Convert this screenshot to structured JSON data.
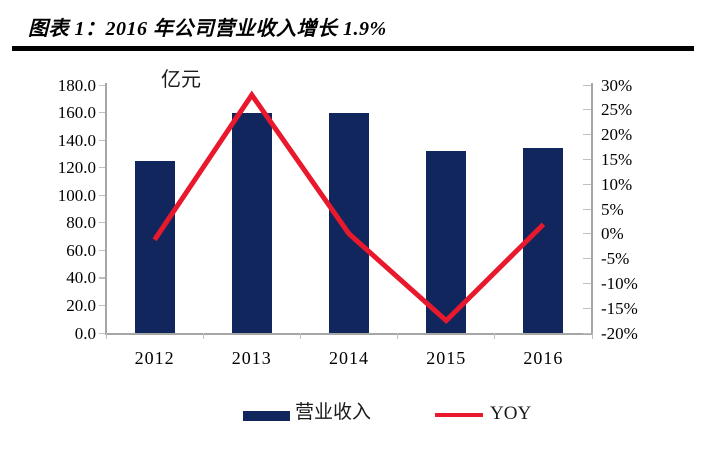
{
  "header": {
    "title": "图表 1：2016 年公司营业收入增长 1.9%"
  },
  "colors": {
    "bar": "#12265E",
    "line": "#E8192C",
    "axis": "#A6A6A6",
    "tick": "#BFBFBF",
    "divider": "#000000"
  },
  "chart_data": {
    "type": "bar",
    "subtype": "bar+line combo, dual axis",
    "title": "图表 1：2016 年公司营业收入增长 1.9%",
    "categories": [
      "2012",
      "2013",
      "2014",
      "2015",
      "2016"
    ],
    "series": [
      {
        "name": "营业收入",
        "type": "bar",
        "axis": "left",
        "unit": "亿元",
        "values": [
          125,
          160,
          160,
          132,
          134.5
        ],
        "color": "#12265E"
      },
      {
        "name": "YOY",
        "type": "line",
        "axis": "right",
        "unit": "%",
        "values": [
          -1.2,
          28,
          0,
          -17.5,
          1.9
        ],
        "color": "#E8192C"
      }
    ],
    "left_axis": {
      "label": "亿元",
      "min": 0,
      "max": 180,
      "step": 20,
      "tick_labels": [
        "180.0",
        "160.0",
        "140.0",
        "120.0",
        "100.0",
        "80.0",
        "60.0",
        "40.0",
        "20.0",
        "0.0"
      ]
    },
    "right_axis": {
      "min": -20,
      "max": 30,
      "step": 5,
      "tick_labels": [
        "30%",
        "25%",
        "20%",
        "15%",
        "10%",
        "5%",
        "0%",
        "-5%",
        "-10%",
        "-15%",
        "-20%"
      ]
    },
    "grid": false,
    "legend_position": "bottom",
    "legend": [
      {
        "label": "营业收入",
        "marker": "rect",
        "color": "#12265E"
      },
      {
        "label": "YOY",
        "marker": "line",
        "color": "#E8192C"
      }
    ]
  }
}
